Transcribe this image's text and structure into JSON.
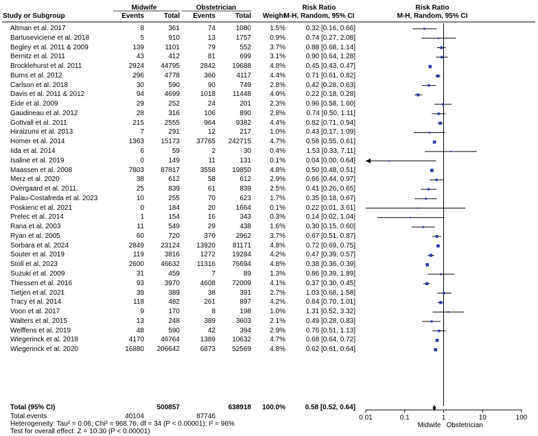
{
  "header": {
    "group1": "Midwife",
    "group2": "Obstetrician",
    "study_col": "Study or Subgroup",
    "events1": "Events",
    "total1": "Total",
    "events2": "Events",
    "total2": "Total",
    "weight": "Weight",
    "rr_title_left": "Risk Ratio",
    "rr_method_left": "M-H, Random, 95% CI",
    "rr_title_right": "Risk Ratio",
    "rr_method_right": "M-H, Random, 95% CI"
  },
  "chart_data": {
    "type": "forest",
    "x_scale": "log",
    "xlim": [
      0.01,
      100
    ],
    "x_ticks": [
      "0.01",
      "0.1",
      "1",
      "10",
      "100"
    ],
    "x_tick_values": [
      0.01,
      0.1,
      1,
      10,
      100
    ],
    "favours_left": "Midwife",
    "favours_right": "Obstetrician",
    "studies": [
      {
        "name": "Altman et al. 2017",
        "e1": "8",
        "t1": "361",
        "e2": "74",
        "t2": "1080",
        "weight": "1.5%",
        "ci_text": "0.32 [0.16, 0.66]",
        "rr": 0.32,
        "lo": 0.16,
        "hi": 0.66
      },
      {
        "name": "Bartuseviciene et al. 2018",
        "e1": "5",
        "t1": "910",
        "e2": "13",
        "t2": "1757",
        "weight": "0.9%",
        "ci_text": "0.74 [0.27, 2.08]",
        "rr": 0.74,
        "lo": 0.27,
        "hi": 2.08
      },
      {
        "name": "Begley et al. 2011 & 2009",
        "e1": "139",
        "t1": "1101",
        "e2": "79",
        "t2": "552",
        "weight": "3.7%",
        "ci_text": "0.88 [0.68, 1.14]",
        "rr": 0.88,
        "lo": 0.68,
        "hi": 1.14
      },
      {
        "name": "Bernitz et al. 2011",
        "e1": "43",
        "t1": "412",
        "e2": "81",
        "t2": "699",
        "weight": "3.1%",
        "ci_text": "0.90 [0.64, 1.28]",
        "rr": 0.9,
        "lo": 0.64,
        "hi": 1.28
      },
      {
        "name": "Brocklehurst et al. 2011",
        "e1": "2924",
        "t1": "44795",
        "e2": "2842",
        "t2": "19688",
        "weight": "4.8%",
        "ci_text": "0.45 [0.43, 0.47]",
        "rr": 0.45,
        "lo": 0.43,
        "hi": 0.47
      },
      {
        "name": "Burns et al. 2012",
        "e1": "296",
        "t1": "4778",
        "e2": "360",
        "t2": "4117",
        "weight": "4.4%",
        "ci_text": "0.71 [0.61, 0.82]",
        "rr": 0.71,
        "lo": 0.61,
        "hi": 0.82
      },
      {
        "name": "Carlson et al. 2018",
        "e1": "30",
        "t1": "590",
        "e2": "90",
        "t2": "749",
        "weight": "2.8%",
        "ci_text": "0.42 [0.28, 0.63]",
        "rr": 0.42,
        "lo": 0.28,
        "hi": 0.63
      },
      {
        "name": "Davis et al. 2011 & 2012",
        "e1": "94",
        "t1": "4699",
        "e2": "1018",
        "t2": "11448",
        "weight": "4.0%",
        "ci_text": "0.22 [0.18, 0.28]",
        "rr": 0.22,
        "lo": 0.18,
        "hi": 0.28
      },
      {
        "name": "Eide et al. 2009",
        "e1": "29",
        "t1": "252",
        "e2": "24",
        "t2": "201",
        "weight": "2.3%",
        "ci_text": "0.96 [0.58, 1.60]",
        "rr": 0.96,
        "lo": 0.58,
        "hi": 1.6
      },
      {
        "name": "Gaudineau et al. 2012",
        "e1": "28",
        "t1": "316",
        "e2": "106",
        "t2": "890",
        "weight": "2.8%",
        "ci_text": "0.74 [0.50, 1.11]",
        "rr": 0.74,
        "lo": 0.5,
        "hi": 1.11
      },
      {
        "name": "Gottvall  et al. 2011",
        "e1": "215",
        "t1": "2555",
        "e2": "964",
        "t2": "9382",
        "weight": "4.4%",
        "ci_text": "0.82 [0.71, 0.94]",
        "rr": 0.82,
        "lo": 0.71,
        "hi": 0.94
      },
      {
        "name": "Hiraizumi et al. 2013",
        "e1": "7",
        "t1": "291",
        "e2": "12",
        "t2": "217",
        "weight": "1.0%",
        "ci_text": "0.43 [0.17, 1.09]",
        "rr": 0.43,
        "lo": 0.17,
        "hi": 1.09
      },
      {
        "name": "Homer et al. 2014",
        "e1": "1363",
        "t1": "15173",
        "e2": "37765",
        "t2": "242715",
        "weight": "4.7%",
        "ci_text": "0.58 [0.55, 0.61]",
        "rr": 0.58,
        "lo": 0.55,
        "hi": 0.61
      },
      {
        "name": "Iida et al. 2014",
        "e1": "6",
        "t1": "59",
        "e2": "2",
        "t2": "30",
        "weight": "0.4%",
        "ci_text": "1.53 [0.33, 7.11]",
        "rr": 1.53,
        "lo": 0.33,
        "hi": 7.11
      },
      {
        "name": "Isaline et al. 2019",
        "e1": "0",
        "t1": "149",
        "e2": "11",
        "t2": "131",
        "weight": "0.1%",
        "ci_text": "0.04 [0.00, 0.64]",
        "rr": 0.04,
        "lo": 0.001,
        "hi": 0.64,
        "arrow_left": true
      },
      {
        "name": "Maassen et al. 2008",
        "e1": "7803",
        "t1": "87817",
        "e2": "3558",
        "t2": "19850",
        "weight": "4.8%",
        "ci_text": "0.50 [0.48, 0.51]",
        "rr": 0.5,
        "lo": 0.48,
        "hi": 0.51
      },
      {
        "name": "Merz et al. 2020",
        "e1": "38",
        "t1": "612",
        "e2": "58",
        "t2": "612",
        "weight": "2.9%",
        "ci_text": "0.66 [0.44, 0.97]",
        "rr": 0.66,
        "lo": 0.44,
        "hi": 0.97
      },
      {
        "name": "Overgaard et al. 2011.",
        "e1": "25",
        "t1": "839",
        "e2": "61",
        "t2": "839",
        "weight": "2.5%",
        "ci_text": "0.41 [0.26, 0.65]",
        "rr": 0.41,
        "lo": 0.26,
        "hi": 0.65
      },
      {
        "name": "Palau-Costafreda et al. 2023",
        "e1": "10",
        "t1": "255",
        "e2": "70",
        "t2": "623",
        "weight": "1.7%",
        "ci_text": "0.35 [0.18, 0.67]",
        "rr": 0.35,
        "lo": 0.18,
        "hi": 0.67
      },
      {
        "name": "Poskienc et al. 2021",
        "e1": "0",
        "t1": "184",
        "e2": "20",
        "t2": "1664",
        "weight": "0.1%",
        "ci_text": "0.22 [0.01, 3.61]",
        "rr": 0.22,
        "lo": 0.01,
        "hi": 3.61
      },
      {
        "name": "Prelec et al. 2014",
        "e1": "1",
        "t1": "154",
        "e2": "16",
        "t2": "343",
        "weight": "0.3%",
        "ci_text": "0.14 [0.02, 1.04]",
        "rr": 0.14,
        "lo": 0.02,
        "hi": 1.04
      },
      {
        "name": "Rana et al. 2003",
        "e1": "11",
        "t1": "549",
        "e2": "29",
        "t2": "438",
        "weight": "1.6%",
        "ci_text": "0.30 [0.15, 0.60]",
        "rr": 0.3,
        "lo": 0.15,
        "hi": 0.6
      },
      {
        "name": "Ryan et al. 2005",
        "e1": "60",
        "t1": "720",
        "e2": "370",
        "t2": "2962",
        "weight": "3.7%",
        "ci_text": "0.67 [0.51, 0.87]",
        "rr": 0.67,
        "lo": 0.51,
        "hi": 0.87
      },
      {
        "name": "Sorbara et al. 2024",
        "e1": "2849",
        "t1": "23124",
        "e2": "13920",
        "t2": "81171",
        "weight": "4.8%",
        "ci_text": "0.72 [0.69, 0.75]",
        "rr": 0.72,
        "lo": 0.69,
        "hi": 0.75
      },
      {
        "name": "Souter et al. 2019",
        "e1": "119",
        "t1": "3816",
        "e2": "1272",
        "t2": "19284",
        "weight": "4.2%",
        "ci_text": "0.47 [0.39, 0.57]",
        "rr": 0.47,
        "lo": 0.39,
        "hi": 0.57
      },
      {
        "name": "Stoll et al. 2023",
        "e1": "2600",
        "t1": "46632",
        "e2": "11316",
        "t2": "76694",
        "weight": "4.8%",
        "ci_text": "0.38 [0.36, 0.39]",
        "rr": 0.38,
        "lo": 0.36,
        "hi": 0.39
      },
      {
        "name": "Suzuki et al. 2009",
        "e1": "31",
        "t1": "459",
        "e2": "7",
        "t2": "89",
        "weight": "1.3%",
        "ci_text": "0.86 [0.39, 1.89]",
        "rr": 0.86,
        "lo": 0.39,
        "hi": 1.89
      },
      {
        "name": "Thiessen et al. 2016",
        "e1": "93",
        "t1": "3970",
        "e2": "4608",
        "t2": "72009",
        "weight": "4.1%",
        "ci_text": "0.37 [0.30, 0.45]",
        "rr": 0.37,
        "lo": 0.3,
        "hi": 0.45
      },
      {
        "name": "Tietjen et al. 2021",
        "e1": "39",
        "t1": "389",
        "e2": "38",
        "t2": "391",
        "weight": "2.7%",
        "ci_text": "1.03 [0.68, 1.58]",
        "rr": 1.03,
        "lo": 0.68,
        "hi": 1.58
      },
      {
        "name": "Tracy et al. 2014",
        "e1": "118",
        "t1": "482",
        "e2": "261",
        "t2": "897",
        "weight": "4.2%",
        "ci_text": "0.84 [0.70, 1.01]",
        "rr": 0.84,
        "lo": 0.7,
        "hi": 1.01
      },
      {
        "name": "Voon et al. 2017",
        "e1": "9",
        "t1": "170",
        "e2": "8",
        "t2": "198",
        "weight": "1.0%",
        "ci_text": "1.31 [0.52, 3.32]",
        "rr": 1.31,
        "lo": 0.52,
        "hi": 3.32
      },
      {
        "name": "Walters et al. 2015",
        "e1": "13",
        "t1": "248",
        "e2": "389",
        "t2": "3603",
        "weight": "2.1%",
        "ci_text": "0.49 [0.28, 0.83]",
        "rr": 0.49,
        "lo": 0.28,
        "hi": 0.83
      },
      {
        "name": "Welffens et al. 2019",
        "e1": "48",
        "t1": "590",
        "e2": "42",
        "t2": "394",
        "weight": "2.9%",
        "ci_text": "0.76 [0.51, 1.13]",
        "rr": 0.76,
        "lo": 0.51,
        "hi": 1.13
      },
      {
        "name": "Wiegerinck et al. 2018",
        "e1": "4170",
        "t1": "46764",
        "e2": "1389",
        "t2": "10632",
        "weight": "4.7%",
        "ci_text": "0.68 [0.64, 0.72]",
        "rr": 0.68,
        "lo": 0.64,
        "hi": 0.72
      },
      {
        "name": "Wiegerinck et al. 2020",
        "e1": "16880",
        "t1": "206642",
        "e2": "6873",
        "t2": "52569",
        "weight": "4.8%",
        "ci_text": "0.62 [0.61, 0.64]",
        "rr": 0.62,
        "lo": 0.61,
        "hi": 0.64
      }
    ],
    "total": {
      "label": "Total (95% CI)",
      "t1": "500857",
      "t2": "638918",
      "weight": "100.0%",
      "ci_text": "0.58 [0.52, 0.64]",
      "rr": 0.58,
      "lo": 0.52,
      "hi": 0.64
    },
    "total_events": {
      "label": "Total events",
      "e1": "40104",
      "e2": "87746"
    },
    "heterogeneity": "Heterogeneity: Tau² = 0.06; Chi² = 968.76, df = 34 (P < 0.00001); I² = 96%",
    "overall_effect": "Test for overall effect: Z = 10.30 (P < 0.00001)"
  }
}
